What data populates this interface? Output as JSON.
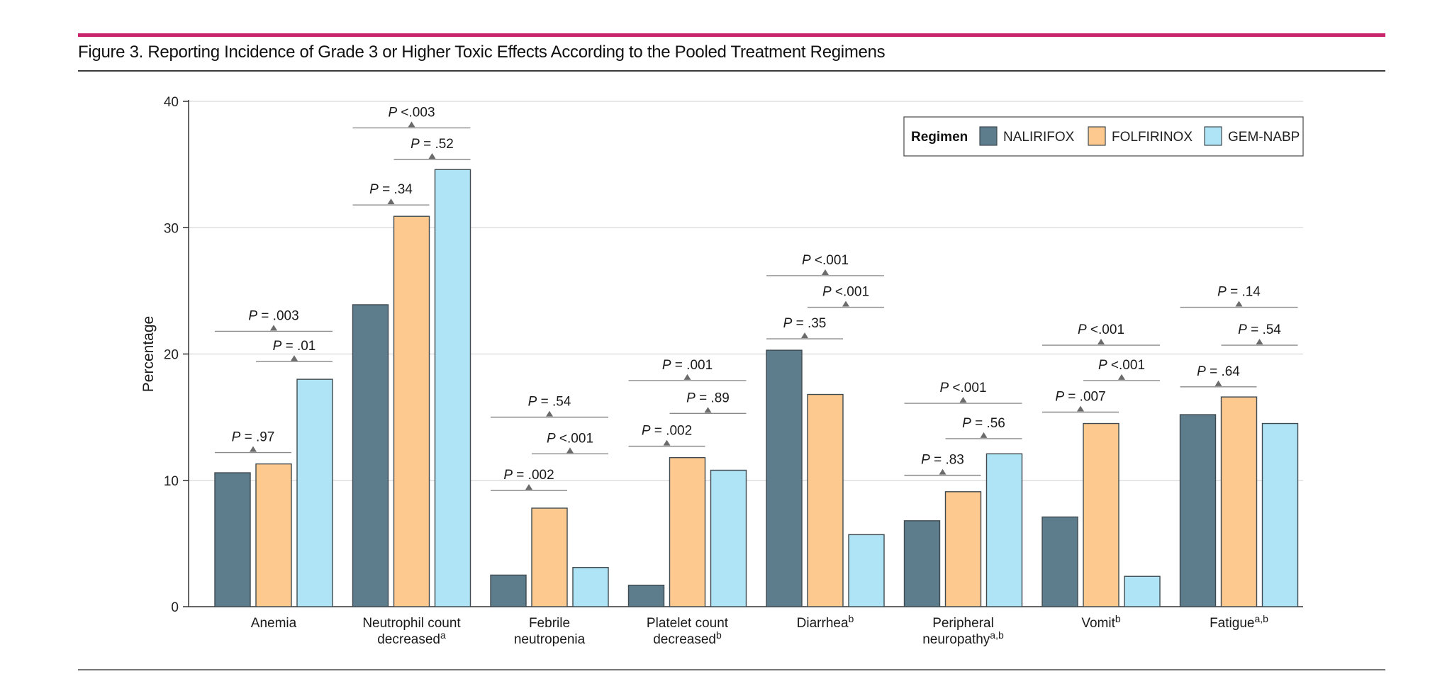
{
  "figure": {
    "title": "Figure 3. Reporting Incidence of Grade 3 or Higher Toxic Effects According to the Pooled Treatment Regimens"
  },
  "colors": {
    "accent_rule": "#c8256c",
    "series": [
      "#5d7d8c",
      "#fec98e",
      "#aee4f6"
    ],
    "bar_stroke": "#3f4a50",
    "grid": "#d9d9d9",
    "bracket": "#8a8a8a"
  },
  "chart_data": {
    "type": "bar",
    "title": "",
    "xlabel": "",
    "ylabel": "Percentage",
    "ylim": [
      0,
      40
    ],
    "yticks": [
      0,
      10,
      20,
      30,
      40
    ],
    "grid": true,
    "legend": {
      "title": "Regimen",
      "placement": "top-right"
    },
    "categories": [
      {
        "label": [
          "Anemia"
        ],
        "sup": ""
      },
      {
        "label": [
          "Neutrophil count",
          "decreased"
        ],
        "sup": "a"
      },
      {
        "label": [
          "Febrile",
          "neutropenia"
        ],
        "sup": ""
      },
      {
        "label": [
          "Platelet count",
          "decreased"
        ],
        "sup": "b"
      },
      {
        "label": [
          "Diarrhea"
        ],
        "sup": "b"
      },
      {
        "label": [
          "Peripheral",
          "neuropathy"
        ],
        "sup": "a,b"
      },
      {
        "label": [
          "Vomit"
        ],
        "sup": "b"
      },
      {
        "label": [
          "Fatigue"
        ],
        "sup": "a,b"
      }
    ],
    "series": [
      {
        "name": "NALIRIFOX",
        "values": [
          10.6,
          23.9,
          2.5,
          1.7,
          20.3,
          6.8,
          7.1,
          15.2
        ]
      },
      {
        "name": "FOLFIRINOX",
        "values": [
          11.3,
          30.9,
          7.8,
          11.8,
          16.8,
          9.1,
          14.5,
          16.6
        ]
      },
      {
        "name": "GEM-NABP",
        "values": [
          18.0,
          34.6,
          3.1,
          10.8,
          5.7,
          12.1,
          2.4,
          14.5
        ]
      }
    ],
    "comparisons": [
      {
        "cat": 0,
        "from": 0,
        "to": 1,
        "p": "P = .97",
        "level": 12.2
      },
      {
        "cat": 0,
        "from": 1,
        "to": 2,
        "p": "P = .01",
        "level": 19.4
      },
      {
        "cat": 0,
        "from": 0,
        "to": 2,
        "p": "P = .003",
        "level": 21.8
      },
      {
        "cat": 1,
        "from": 0,
        "to": 1,
        "p": "P = .34",
        "level": 31.8
      },
      {
        "cat": 1,
        "from": 1,
        "to": 2,
        "p": "P = .52",
        "level": 35.4
      },
      {
        "cat": 1,
        "from": 0,
        "to": 2,
        "p": "P <.003",
        "level": 37.9
      },
      {
        "cat": 2,
        "from": 0,
        "to": 1,
        "p": "P = .002",
        "level": 9.2
      },
      {
        "cat": 2,
        "from": 1,
        "to": 2,
        "p": "P <.001",
        "level": 12.1
      },
      {
        "cat": 2,
        "from": 0,
        "to": 2,
        "p": "P = .54",
        "level": 15.0
      },
      {
        "cat": 3,
        "from": 0,
        "to": 1,
        "p": "P = .002",
        "level": 12.7
      },
      {
        "cat": 3,
        "from": 1,
        "to": 2,
        "p": "P = .89",
        "level": 15.3
      },
      {
        "cat": 3,
        "from": 0,
        "to": 2,
        "p": "P = .001",
        "level": 17.9
      },
      {
        "cat": 4,
        "from": 0,
        "to": 1,
        "p": "P = .35",
        "level": 21.2
      },
      {
        "cat": 4,
        "from": 1,
        "to": 2,
        "p": "P <.001",
        "level": 23.7
      },
      {
        "cat": 4,
        "from": 0,
        "to": 2,
        "p": "P <.001",
        "level": 26.2
      },
      {
        "cat": 5,
        "from": 0,
        "to": 1,
        "p": "P = .83",
        "level": 10.4
      },
      {
        "cat": 5,
        "from": 1,
        "to": 2,
        "p": "P = .56",
        "level": 13.3
      },
      {
        "cat": 5,
        "from": 0,
        "to": 2,
        "p": "P <.001",
        "level": 16.1
      },
      {
        "cat": 6,
        "from": 0,
        "to": 1,
        "p": "P = .007",
        "level": 15.4
      },
      {
        "cat": 6,
        "from": 1,
        "to": 2,
        "p": "P <.001",
        "level": 17.9
      },
      {
        "cat": 6,
        "from": 0,
        "to": 2,
        "p": "P <.001",
        "level": 20.7
      },
      {
        "cat": 7,
        "from": 0,
        "to": 1,
        "p": "P = .64",
        "level": 17.4
      },
      {
        "cat": 7,
        "from": 1,
        "to": 2,
        "p": "P = .54",
        "level": 20.7
      },
      {
        "cat": 7,
        "from": 0,
        "to": 2,
        "p": "P = .14",
        "level": 23.7
      }
    ]
  }
}
